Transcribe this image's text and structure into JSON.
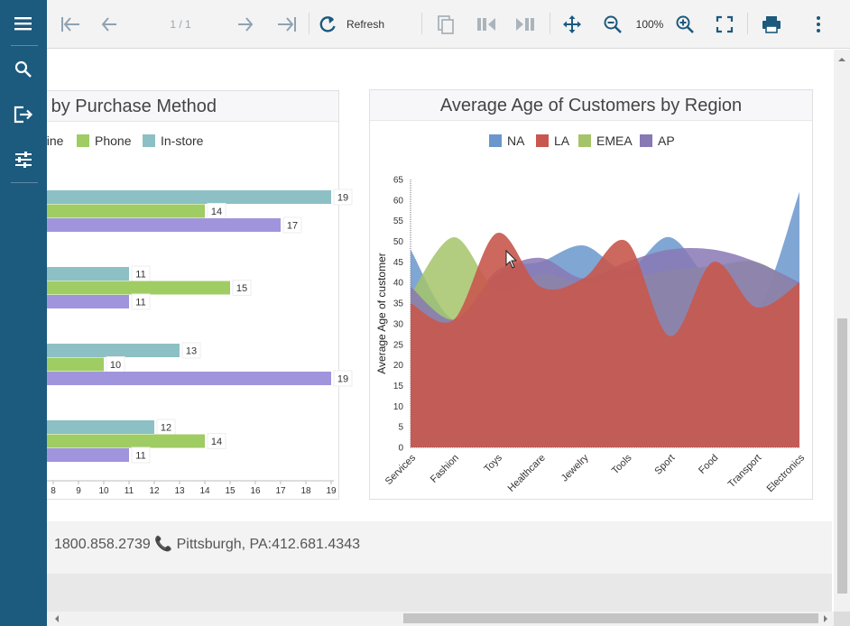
{
  "toolbar": {
    "page_indicator": "1 / 1",
    "refresh_label": "Refresh",
    "zoom_level": "100%"
  },
  "sidebar": {
    "items": [
      {
        "icon": "menu-icon"
      },
      {
        "icon": "search-icon"
      },
      {
        "icon": "export-icon"
      },
      {
        "icon": "parameters-icon"
      }
    ]
  },
  "left_panel": {
    "title": "Sold by Purchase Method",
    "legend": [
      "Online",
      "Phone",
      "In-store"
    ]
  },
  "right_panel": {
    "title": "Average Age of Customers by Region",
    "legend": [
      "NA",
      "LA",
      "EMEA",
      "AP"
    ]
  },
  "footer": {
    "contact_text": "1800.858.2739 📞 Pittsburgh, PA:412.681.4343"
  },
  "colors": {
    "sidebar": "#1c5a7e",
    "online": "#a095dc",
    "phone": "#a0cc64",
    "instore": "#8cc0c4",
    "na": "#6a96cc",
    "la": "#c8584e",
    "emea": "#a5c46a",
    "ap": "#8878b4"
  },
  "chart_data": [
    {
      "type": "bar",
      "orientation": "horizontal",
      "title": "Sold by Purchase Method",
      "xlim": [
        7,
        19
      ],
      "x_ticks": [
        "8",
        "9",
        "10",
        "11",
        "12",
        "13",
        "14",
        "15",
        "16",
        "17",
        "18",
        "19"
      ],
      "groups": [
        {
          "In-store": 19,
          "Phone": 14,
          "Online": 17
        },
        {
          "In-store": 11,
          "Phone": 15,
          "Online": 11
        },
        {
          "In-store": 13,
          "Phone": 10,
          "Online": 19
        },
        {
          "In-store": 12,
          "Phone": 14,
          "Online": 11
        }
      ],
      "legend": [
        "Online",
        "Phone",
        "In-store"
      ]
    },
    {
      "type": "area",
      "title": "Average Age of Customers by Region",
      "ylabel": "Average Age of customer",
      "ylim": [
        0,
        65
      ],
      "y_ticks": [
        "0",
        "5",
        "10",
        "15",
        "20",
        "25",
        "30",
        "35",
        "40",
        "45",
        "50",
        "55",
        "60",
        "65"
      ],
      "categories": [
        "Services",
        "Fashion",
        "Toys",
        "Healthcare",
        "Jewelry",
        "Tools",
        "Sport",
        "Food",
        "Transport",
        "Electronics"
      ],
      "series": [
        {
          "name": "NA",
          "values": [
            48,
            31,
            43,
            45,
            49,
            43,
            51,
            39,
            33,
            62
          ]
        },
        {
          "name": "EMEA",
          "values": [
            37,
            51,
            38,
            42,
            40,
            41,
            43,
            44,
            45,
            39
          ]
        },
        {
          "name": "AP",
          "values": [
            39,
            31,
            42,
            46,
            41,
            45,
            48,
            48,
            45,
            40
          ]
        },
        {
          "name": "LA",
          "values": [
            35,
            31,
            52,
            39,
            41,
            50,
            27,
            45,
            34,
            40
          ]
        }
      ]
    }
  ]
}
